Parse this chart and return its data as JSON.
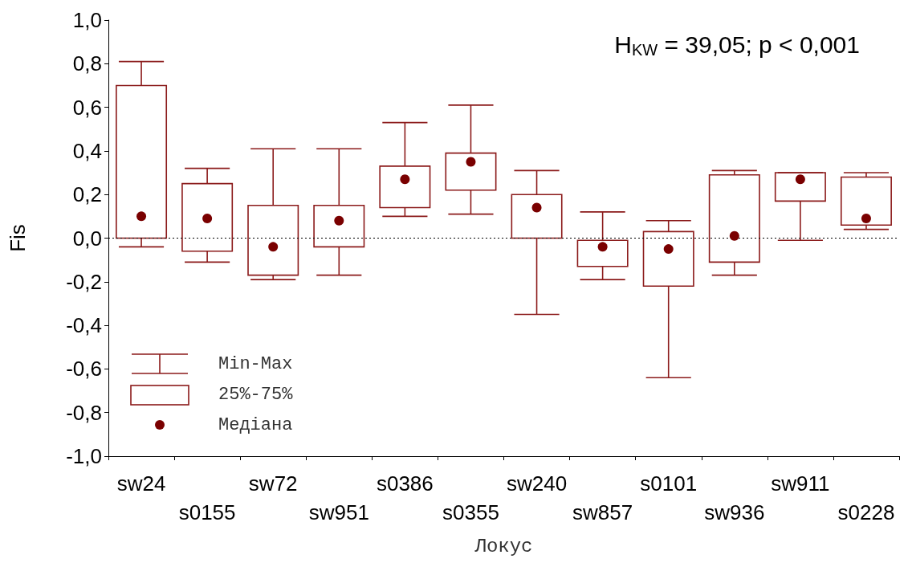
{
  "chart_data": {
    "type": "box",
    "xlabel": "Локус",
    "ylabel": "Fis",
    "categories": [
      "sw24",
      "s0155",
      "sw72",
      "sw951",
      "s0386",
      "s0355",
      "sw240",
      "sw857",
      "s0101",
      "sw936",
      "sw911",
      "s0228"
    ],
    "color": "#8b1a1a",
    "boxes": [
      {
        "low": -0.04,
        "q1": 0.0,
        "median": 0.1,
        "q3": 0.7,
        "high": 0.81
      },
      {
        "low": -0.11,
        "q1": -0.06,
        "median": 0.09,
        "q3": 0.25,
        "high": 0.32
      },
      {
        "low": -0.19,
        "q1": -0.17,
        "median": -0.04,
        "q3": 0.15,
        "high": 0.41
      },
      {
        "low": -0.17,
        "q1": -0.04,
        "median": 0.08,
        "q3": 0.15,
        "high": 0.41
      },
      {
        "low": 0.1,
        "q1": 0.14,
        "median": 0.27,
        "q3": 0.33,
        "high": 0.53
      },
      {
        "low": 0.11,
        "q1": 0.22,
        "median": 0.35,
        "q3": 0.39,
        "high": 0.61
      },
      {
        "low": -0.35,
        "q1": 0.0,
        "median": 0.14,
        "q3": 0.2,
        "high": 0.31
      },
      {
        "low": -0.19,
        "q1": -0.13,
        "median": -0.04,
        "q3": -0.01,
        "high": 0.12
      },
      {
        "low": -0.64,
        "q1": -0.22,
        "median": -0.05,
        "q3": 0.03,
        "high": 0.08
      },
      {
        "low": -0.17,
        "q1": -0.11,
        "median": 0.01,
        "q3": 0.29,
        "high": 0.31
      },
      {
        "low": -0.01,
        "q1": 0.17,
        "median": 0.27,
        "q3": 0.3,
        "high": 0.3
      },
      {
        "low": 0.04,
        "q1": 0.06,
        "median": 0.09,
        "q3": 0.28,
        "high": 0.3
      }
    ],
    "ylim": [
      -1.0,
      1.0
    ],
    "yticks": [
      {
        "value": -1.0,
        "label": "-1,0"
      },
      {
        "value": -0.8,
        "label": "-0,8"
      },
      {
        "value": -0.6,
        "label": "-0,6"
      },
      {
        "value": -0.4,
        "label": "-0,4"
      },
      {
        "value": -0.2,
        "label": "-0,2"
      },
      {
        "value": 0.0,
        "label": "0,0"
      },
      {
        "value": 0.2,
        "label": "0,2"
      },
      {
        "value": 0.4,
        "label": "0,4"
      },
      {
        "value": 0.6,
        "label": "0,6"
      },
      {
        "value": 0.8,
        "label": "0,8"
      },
      {
        "value": 1.0,
        "label": "1,0"
      }
    ],
    "ref_lines": [
      {
        "axis": "y",
        "value": 0,
        "color": "#000000",
        "line_style": "dotted"
      }
    ],
    "annotations": [
      "H$_{KW}$ = 39,05; p < 0,001",
      "Min-Max",
      "25%-75%",
      "Медіана"
    ],
    "grid": false
  }
}
